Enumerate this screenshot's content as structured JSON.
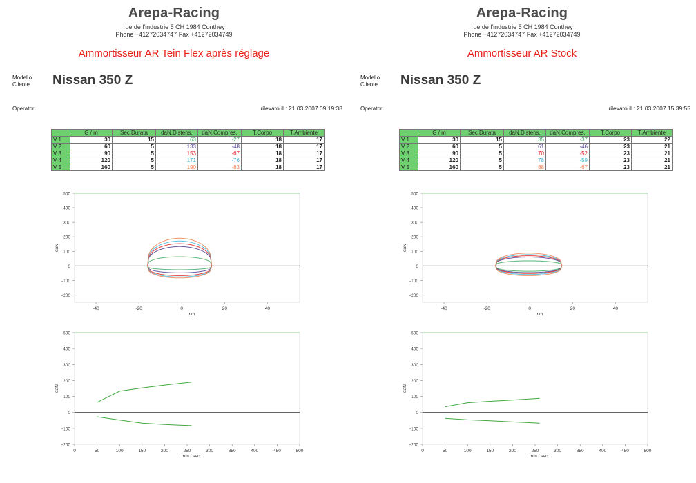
{
  "company": {
    "name": "Arepa-Racing",
    "address": "rue de l'industrie 5   CH 1984 Conthey",
    "phone": "Phone +41272034747     Fax +41272034749"
  },
  "labels": {
    "model_client": "Modello\nCliente",
    "operator": "Operator:",
    "table_headers": [
      "",
      "G / m",
      "Sec.Durata",
      "daN.Distens.",
      "daN.Compres.",
      "T.Corpo",
      "T.Ambiente"
    ]
  },
  "reports": [
    {
      "title": "Ammortisseur AR Tein Flex après réglage",
      "car": "Nissan 350 Z",
      "measured": "rilevato il : 21.03.2007 09:19:38",
      "rows": [
        {
          "v": "V 1",
          "gm": "30",
          "sec": "15",
          "dist": "63",
          "comp": "-27",
          "tc": "18",
          "ta": "17"
        },
        {
          "v": "V 2",
          "gm": "60",
          "sec": "5",
          "dist": "133",
          "comp": "-48",
          "tc": "18",
          "ta": "17"
        },
        {
          "v": "V 3",
          "gm": "90",
          "sec": "5",
          "dist": "153",
          "comp": "-67",
          "tc": "18",
          "ta": "17"
        },
        {
          "v": "V 4",
          "gm": "120",
          "sec": "5",
          "dist": "171",
          "comp": "-76",
          "tc": "18",
          "ta": "17"
        },
        {
          "v": "V 5",
          "gm": "160",
          "sec": "5",
          "dist": "190",
          "comp": "-83",
          "tc": "18",
          "ta": "17"
        }
      ]
    },
    {
      "title": "Ammortisseur AR Stock",
      "car": "Nissan 350 Z",
      "measured": "rilevato il : 21.03.2007 15:39:55",
      "rows": [
        {
          "v": "V 1",
          "gm": "30",
          "sec": "15",
          "dist": "35",
          "comp": "-37",
          "tc": "23",
          "ta": "22"
        },
        {
          "v": "V 2",
          "gm": "60",
          "sec": "5",
          "dist": "61",
          "comp": "-46",
          "tc": "23",
          "ta": "21"
        },
        {
          "v": "V 3",
          "gm": "90",
          "sec": "5",
          "dist": "70",
          "comp": "-52",
          "tc": "23",
          "ta": "21"
        },
        {
          "v": "V 4",
          "gm": "120",
          "sec": "5",
          "dist": "78",
          "comp": "-59",
          "tc": "23",
          "ta": "21"
        },
        {
          "v": "V 5",
          "gm": "160",
          "sec": "5",
          "dist": "88",
          "comp": "-67",
          "tc": "23",
          "ta": "21"
        }
      ]
    }
  ],
  "colors": {
    "row_values": [
      "#3aa85a",
      "#4a3f8f",
      "#e02020",
      "#3bb7d8",
      "#f08050"
    ],
    "header_green": "#6fd06f",
    "curve_green": "#40a840"
  },
  "chart_data": [
    {
      "type": "line",
      "title": "",
      "panel": "left-top",
      "xlabel": "mm",
      "ylabel": "daN",
      "xlim": [
        -50,
        55
      ],
      "ylim": [
        -250,
        500
      ],
      "xticks": [
        -40,
        -20,
        0,
        20,
        40
      ],
      "yticks": [
        -200,
        -100,
        0,
        100,
        200,
        300,
        400,
        500
      ],
      "loops": [
        {
          "v": "V 1",
          "tension": 63,
          "compression": -27
        },
        {
          "v": "V 2",
          "tension": 133,
          "compression": -48
        },
        {
          "v": "V 3",
          "tension": 153,
          "compression": -67
        },
        {
          "v": "V 4",
          "tension": 171,
          "compression": -76
        },
        {
          "v": "V 5",
          "tension": 190,
          "compression": -83
        }
      ],
      "x_range": [
        -16,
        14
      ]
    },
    {
      "type": "line",
      "title": "",
      "panel": "left-bottom",
      "xlabel": "mm / sec.",
      "ylabel": "daN",
      "xlim": [
        0,
        500
      ],
      "ylim": [
        -200,
        500
      ],
      "xticks": [
        0,
        50,
        100,
        150,
        200,
        250,
        300,
        350,
        400,
        450,
        500
      ],
      "yticks": [
        -200,
        -100,
        0,
        100,
        200,
        300,
        400,
        500
      ],
      "series": [
        {
          "x": [
            50,
            100,
            150,
            200,
            260
          ],
          "y": [
            63,
            133,
            153,
            171,
            190
          ]
        },
        {
          "x": [
            50,
            100,
            150,
            200,
            260
          ],
          "y": [
            -27,
            -48,
            -67,
            -76,
            -83
          ]
        }
      ]
    },
    {
      "type": "line",
      "title": "",
      "panel": "right-top",
      "xlabel": "mm",
      "ylabel": "daN",
      "xlim": [
        -50,
        55
      ],
      "ylim": [
        -250,
        500
      ],
      "xticks": [
        -40,
        -20,
        0,
        20,
        40
      ],
      "yticks": [
        -200,
        -100,
        0,
        100,
        200,
        300,
        400,
        500
      ],
      "loops": [
        {
          "v": "V 1",
          "tension": 35,
          "compression": -37
        },
        {
          "v": "V 2",
          "tension": 61,
          "compression": -46
        },
        {
          "v": "V 3",
          "tension": 70,
          "compression": -52
        },
        {
          "v": "V 4",
          "tension": 78,
          "compression": -59
        },
        {
          "v": "V 5",
          "tension": 88,
          "compression": -67
        }
      ],
      "x_range": [
        -16,
        15
      ]
    },
    {
      "type": "line",
      "title": "",
      "panel": "right-bottom",
      "xlabel": "mm / sec.",
      "ylabel": "daN",
      "xlim": [
        0,
        500
      ],
      "ylim": [
        -200,
        500
      ],
      "xticks": [
        0,
        50,
        100,
        150,
        200,
        250,
        300,
        350,
        400,
        450,
        500
      ],
      "yticks": [
        -200,
        -100,
        0,
        100,
        200,
        300,
        400,
        500
      ],
      "series": [
        {
          "x": [
            50,
            100,
            150,
            200,
            260
          ],
          "y": [
            35,
            61,
            70,
            78,
            88
          ]
        },
        {
          "x": [
            50,
            100,
            150,
            200,
            260
          ],
          "y": [
            -37,
            -46,
            -52,
            -59,
            -67
          ]
        }
      ]
    }
  ]
}
